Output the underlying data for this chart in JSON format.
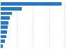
{
  "values": [
    3800,
    1300,
    720,
    580,
    500,
    440,
    390,
    330,
    260,
    120
  ],
  "bar_color": "#2878c8",
  "background_color": "#ffffff",
  "grid_color": "#cccccc",
  "xlim_max": 4200,
  "figsize": [
    1.0,
    0.71
  ],
  "dpi": 100,
  "bar_height": 0.75,
  "n_bars": 10
}
